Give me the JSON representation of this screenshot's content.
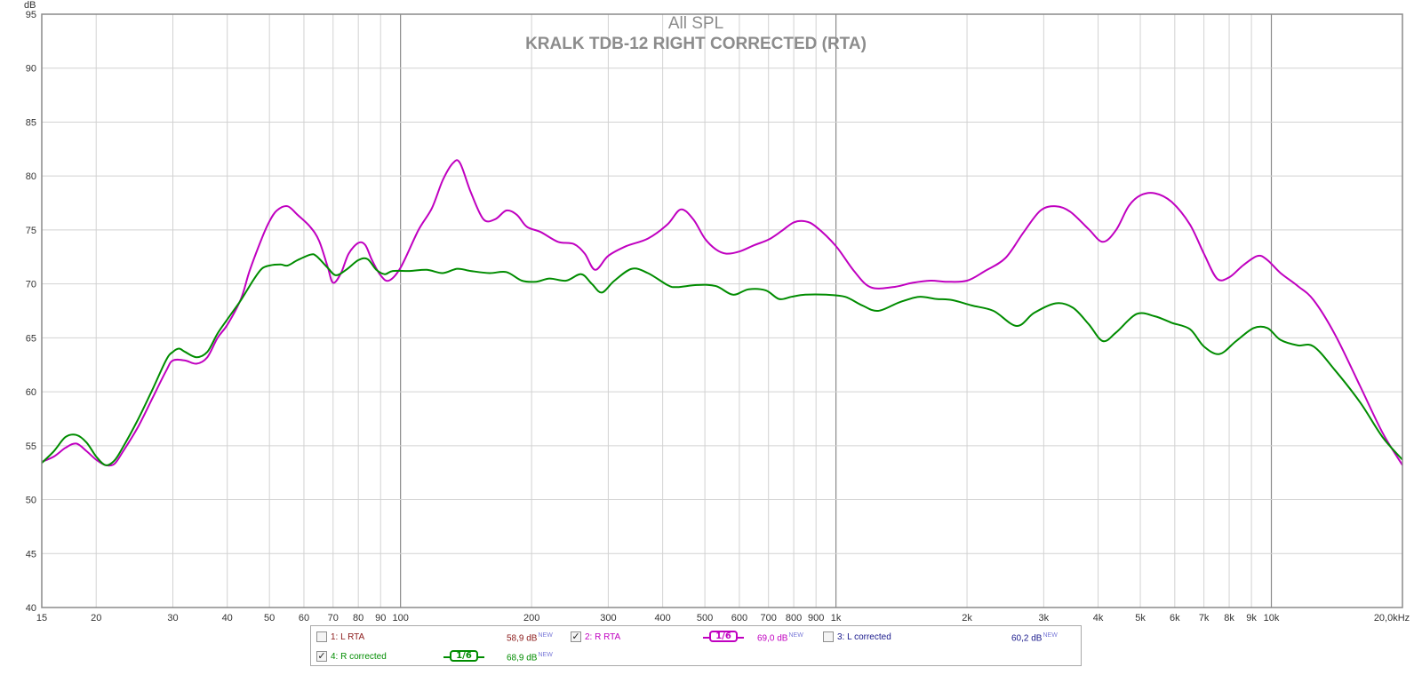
{
  "chart_data": {
    "type": "line",
    "title": "All SPL",
    "subtitle": "KRALK TDB-12 RIGHT CORRECTED (RTA)",
    "ylabel": "dB",
    "xscale": "log",
    "xlim": [
      15,
      20000
    ],
    "ylim": [
      40,
      95
    ],
    "grid": true,
    "legend_position": "bottom",
    "y_ticks": [
      40,
      45,
      50,
      55,
      60,
      65,
      70,
      75,
      80,
      85,
      90,
      95
    ],
    "x_ticks": [
      {
        "v": 15,
        "label": "15"
      },
      {
        "v": 20,
        "label": "20"
      },
      {
        "v": 30,
        "label": "30"
      },
      {
        "v": 40,
        "label": "40"
      },
      {
        "v": 50,
        "label": "50"
      },
      {
        "v": 60,
        "label": "60"
      },
      {
        "v": 70,
        "label": "70"
      },
      {
        "v": 80,
        "label": "80"
      },
      {
        "v": 90,
        "label": "90"
      },
      {
        "v": 100,
        "label": "100"
      },
      {
        "v": 200,
        "label": "200"
      },
      {
        "v": 300,
        "label": "300"
      },
      {
        "v": 400,
        "label": "400"
      },
      {
        "v": 500,
        "label": "500"
      },
      {
        "v": 600,
        "label": "600"
      },
      {
        "v": 700,
        "label": "700"
      },
      {
        "v": 800,
        "label": "800"
      },
      {
        "v": 900,
        "label": "900"
      },
      {
        "v": 1000,
        "label": "1k"
      },
      {
        "v": 2000,
        "label": "2k"
      },
      {
        "v": 3000,
        "label": "3k"
      },
      {
        "v": 4000,
        "label": "4k"
      },
      {
        "v": 5000,
        "label": "5k"
      },
      {
        "v": 6000,
        "label": "6k"
      },
      {
        "v": 7000,
        "label": "7k"
      },
      {
        "v": 8000,
        "label": "8k"
      },
      {
        "v": 9000,
        "label": "9k"
      },
      {
        "v": 10000,
        "label": "10k"
      },
      {
        "v": 20000,
        "label": "20,0kHz"
      }
    ],
    "series": [
      {
        "name": "R RTA",
        "color": "#c000c0",
        "points": [
          [
            15,
            53.5
          ],
          [
            16,
            54.0
          ],
          [
            17,
            54.8
          ],
          [
            18,
            55.2
          ],
          [
            19,
            54.5
          ],
          [
            20,
            53.7
          ],
          [
            21,
            53.2
          ],
          [
            22,
            53.3
          ],
          [
            23,
            54.4
          ],
          [
            25,
            56.8
          ],
          [
            27,
            59.5
          ],
          [
            29,
            62.0
          ],
          [
            30,
            62.9
          ],
          [
            32,
            62.9
          ],
          [
            34,
            62.6
          ],
          [
            36,
            63.2
          ],
          [
            38,
            65.0
          ],
          [
            40,
            66.2
          ],
          [
            43,
            68.6
          ],
          [
            45,
            71.2
          ],
          [
            48,
            74.2
          ],
          [
            50,
            75.8
          ],
          [
            52,
            76.8
          ],
          [
            55,
            77.2
          ],
          [
            58,
            76.4
          ],
          [
            62,
            75.3
          ],
          [
            65,
            74.0
          ],
          [
            68,
            71.6
          ],
          [
            70,
            70.1
          ],
          [
            73,
            71.0
          ],
          [
            76,
            72.8
          ],
          [
            80,
            73.8
          ],
          [
            83,
            73.6
          ],
          [
            86,
            72.2
          ],
          [
            90,
            70.8
          ],
          [
            94,
            70.3
          ],
          [
            100,
            71.5
          ],
          [
            110,
            75.0
          ],
          [
            118,
            77.0
          ],
          [
            125,
            79.6
          ],
          [
            132,
            81.2
          ],
          [
            137,
            81.2
          ],
          [
            145,
            78.5
          ],
          [
            155,
            76.0
          ],
          [
            165,
            76.0
          ],
          [
            175,
            76.8
          ],
          [
            185,
            76.4
          ],
          [
            195,
            75.3
          ],
          [
            210,
            74.8
          ],
          [
            230,
            73.9
          ],
          [
            250,
            73.7
          ],
          [
            265,
            72.8
          ],
          [
            280,
            71.3
          ],
          [
            300,
            72.6
          ],
          [
            330,
            73.5
          ],
          [
            370,
            74.2
          ],
          [
            410,
            75.5
          ],
          [
            440,
            76.9
          ],
          [
            470,
            76.0
          ],
          [
            500,
            74.2
          ],
          [
            530,
            73.2
          ],
          [
            560,
            72.8
          ],
          [
            600,
            73.0
          ],
          [
            650,
            73.6
          ],
          [
            700,
            74.1
          ],
          [
            750,
            74.9
          ],
          [
            800,
            75.7
          ],
          [
            850,
            75.8
          ],
          [
            900,
            75.3
          ],
          [
            1000,
            73.5
          ],
          [
            1100,
            71.2
          ],
          [
            1200,
            69.7
          ],
          [
            1350,
            69.7
          ],
          [
            1500,
            70.1
          ],
          [
            1650,
            70.3
          ],
          [
            1800,
            70.2
          ],
          [
            2000,
            70.3
          ],
          [
            2200,
            71.2
          ],
          [
            2450,
            72.4
          ],
          [
            2700,
            74.8
          ],
          [
            2950,
            76.8
          ],
          [
            3200,
            77.2
          ],
          [
            3450,
            76.7
          ],
          [
            3800,
            75.1
          ],
          [
            4100,
            73.9
          ],
          [
            4400,
            75.0
          ],
          [
            4700,
            77.2
          ],
          [
            5000,
            78.2
          ],
          [
            5400,
            78.4
          ],
          [
            5900,
            77.6
          ],
          [
            6500,
            75.5
          ],
          [
            7000,
            72.8
          ],
          [
            7500,
            70.5
          ],
          [
            8000,
            70.6
          ],
          [
            8600,
            71.7
          ],
          [
            9300,
            72.6
          ],
          [
            9800,
            72.2
          ],
          [
            10500,
            71.0
          ],
          [
            11500,
            69.8
          ],
          [
            12500,
            68.5
          ],
          [
            14000,
            65.3
          ],
          [
            16000,
            60.5
          ],
          [
            18000,
            56.2
          ],
          [
            20000,
            53.2
          ]
        ]
      },
      {
        "name": "R corrected",
        "color": "#008c00",
        "points": [
          [
            15,
            53.4
          ],
          [
            16,
            54.5
          ],
          [
            17,
            55.8
          ],
          [
            18,
            56.0
          ],
          [
            19,
            55.3
          ],
          [
            20,
            54.0
          ],
          [
            21,
            53.2
          ],
          [
            22,
            53.6
          ],
          [
            23,
            54.8
          ],
          [
            25,
            57.5
          ],
          [
            27,
            60.3
          ],
          [
            29,
            63.0
          ],
          [
            30,
            63.7
          ],
          [
            31,
            64.0
          ],
          [
            32,
            63.7
          ],
          [
            34,
            63.2
          ],
          [
            36,
            63.7
          ],
          [
            38,
            65.4
          ],
          [
            40,
            66.7
          ],
          [
            43,
            68.5
          ],
          [
            46,
            70.4
          ],
          [
            48,
            71.4
          ],
          [
            50,
            71.7
          ],
          [
            53,
            71.8
          ],
          [
            55,
            71.7
          ],
          [
            58,
            72.2
          ],
          [
            62,
            72.7
          ],
          [
            64,
            72.6
          ],
          [
            68,
            71.5
          ],
          [
            71,
            70.8
          ],
          [
            75,
            71.3
          ],
          [
            80,
            72.2
          ],
          [
            84,
            72.3
          ],
          [
            88,
            71.3
          ],
          [
            92,
            70.9
          ],
          [
            96,
            71.2
          ],
          [
            105,
            71.2
          ],
          [
            115,
            71.3
          ],
          [
            125,
            71.0
          ],
          [
            135,
            71.4
          ],
          [
            145,
            71.2
          ],
          [
            160,
            71.0
          ],
          [
            175,
            71.1
          ],
          [
            190,
            70.3
          ],
          [
            205,
            70.2
          ],
          [
            220,
            70.5
          ],
          [
            240,
            70.3
          ],
          [
            260,
            70.9
          ],
          [
            275,
            70.0
          ],
          [
            290,
            69.2
          ],
          [
            310,
            70.3
          ],
          [
            340,
            71.4
          ],
          [
            370,
            71.0
          ],
          [
            410,
            69.9
          ],
          [
            430,
            69.7
          ],
          [
            480,
            69.9
          ],
          [
            530,
            69.8
          ],
          [
            580,
            69.0
          ],
          [
            630,
            69.5
          ],
          [
            690,
            69.4
          ],
          [
            740,
            68.6
          ],
          [
            790,
            68.8
          ],
          [
            850,
            69.0
          ],
          [
            950,
            69.0
          ],
          [
            1050,
            68.8
          ],
          [
            1150,
            68.0
          ],
          [
            1250,
            67.5
          ],
          [
            1400,
            68.3
          ],
          [
            1550,
            68.8
          ],
          [
            1700,
            68.6
          ],
          [
            1850,
            68.5
          ],
          [
            2050,
            68.0
          ],
          [
            2300,
            67.5
          ],
          [
            2600,
            66.1
          ],
          [
            2850,
            67.3
          ],
          [
            3200,
            68.2
          ],
          [
            3500,
            67.8
          ],
          [
            3800,
            66.3
          ],
          [
            4100,
            64.7
          ],
          [
            4400,
            65.5
          ],
          [
            4900,
            67.2
          ],
          [
            5400,
            67.0
          ],
          [
            5900,
            66.4
          ],
          [
            6500,
            65.8
          ],
          [
            7000,
            64.2
          ],
          [
            7600,
            63.5
          ],
          [
            8300,
            64.7
          ],
          [
            9100,
            65.9
          ],
          [
            9800,
            65.9
          ],
          [
            10500,
            64.8
          ],
          [
            11500,
            64.3
          ],
          [
            12500,
            64.2
          ],
          [
            14000,
            62.0
          ],
          [
            16000,
            59.0
          ],
          [
            18000,
            55.8
          ],
          [
            20000,
            53.7
          ]
        ]
      }
    ]
  },
  "legend": [
    {
      "checked": false,
      "label": "1: L RTA",
      "value": "58,9 dB",
      "badge": "NEW",
      "color": "#8b1a1a",
      "smoothing": null
    },
    {
      "checked": true,
      "label": "2: R RTA",
      "value": "69,0 dB",
      "badge": "NEW",
      "color": "#c000c0",
      "smoothing": "1/6"
    },
    {
      "checked": false,
      "label": "3: L corrected",
      "value": "60,2 dB",
      "badge": "NEW",
      "color": "#1a1a8c",
      "smoothing": null
    },
    {
      "checked": true,
      "label": "4: R corrected",
      "value": "68,9 dB",
      "badge": "NEW",
      "color": "#008c00",
      "smoothing": "1/6"
    }
  ]
}
